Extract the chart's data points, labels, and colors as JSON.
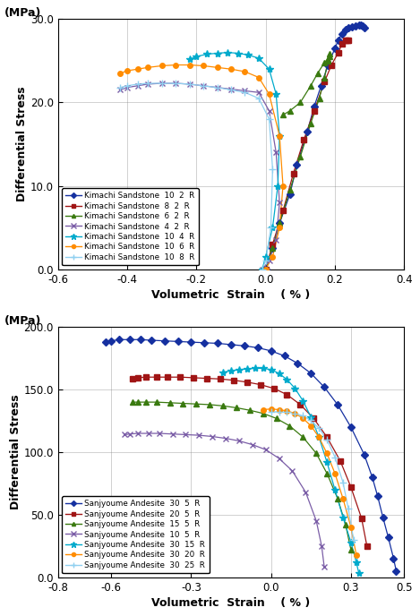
{
  "top_chart": {
    "xlabel": "Volumetric  Strain    ( % )",
    "ylabel": "Differential Stress",
    "ylabel2": "(MPa)",
    "xlim": [
      -0.6,
      0.4
    ],
    "ylim": [
      0.0,
      30.0
    ],
    "xticks": [
      -0.6,
      -0.4,
      -0.2,
      0.0,
      0.2,
      0.4
    ],
    "yticks": [
      0.0,
      10.0,
      20.0,
      30.0
    ],
    "series": [
      {
        "label": "Kimachi Sandstone  10  2  R",
        "color": "#1530A0",
        "marker": "D",
        "markersize": 4,
        "x": [
          0.0,
          0.02,
          0.04,
          0.07,
          0.09,
          0.12,
          0.14,
          0.16,
          0.18,
          0.2,
          0.21,
          0.22,
          0.23,
          0.24,
          0.25,
          0.26,
          0.27,
          0.275,
          0.28,
          0.285
        ],
        "y": [
          0.0,
          2.5,
          5.5,
          9.0,
          12.5,
          16.5,
          19.5,
          22.0,
          24.5,
          26.5,
          27.5,
          28.2,
          28.8,
          29.0,
          29.1,
          29.2,
          29.3,
          29.3,
          29.2,
          29.0
        ]
      },
      {
        "label": "Kimachi Sandstone  8  2  R",
        "color": "#A01515",
        "marker": "s",
        "markersize": 4,
        "x": [
          0.0,
          0.02,
          0.05,
          0.08,
          0.11,
          0.14,
          0.17,
          0.19,
          0.21,
          0.22,
          0.23,
          0.235,
          0.24
        ],
        "y": [
          0.0,
          3.0,
          7.0,
          11.5,
          15.5,
          19.0,
          22.5,
          24.5,
          26.0,
          27.0,
          27.5,
          27.5,
          27.5
        ]
      },
      {
        "label": "Kimachi Sandstone  6  2  R",
        "color": "#3A7A10",
        "marker": "^",
        "markersize": 4,
        "x": [
          0.0,
          0.02,
          0.04,
          0.07,
          0.1,
          0.13,
          0.155,
          0.17,
          0.18,
          0.185,
          0.185,
          0.18,
          0.17,
          0.15,
          0.13,
          0.1,
          0.07,
          0.05
        ],
        "y": [
          0.0,
          2.5,
          5.5,
          9.5,
          13.5,
          17.5,
          20.5,
          23.0,
          25.0,
          25.8,
          25.5,
          25.2,
          24.8,
          23.5,
          22.0,
          20.0,
          19.0,
          18.5
        ]
      },
      {
        "label": "Kimachi Sandstone  4  2  R",
        "color": "#7B5EA7",
        "marker": "x",
        "markersize": 5,
        "x": [
          -0.42,
          -0.4,
          -0.37,
          -0.34,
          -0.3,
          -0.26,
          -0.22,
          -0.18,
          -0.14,
          -0.1,
          -0.06,
          -0.02,
          0.01,
          0.03,
          0.04,
          0.03,
          0.01,
          -0.01
        ],
        "y": [
          21.5,
          21.8,
          22.0,
          22.2,
          22.3,
          22.3,
          22.2,
          22.0,
          21.8,
          21.6,
          21.4,
          21.2,
          19.0,
          14.0,
          8.0,
          3.5,
          1.0,
          0.0
        ]
      },
      {
        "label": "Kimachi Sandstone  10  4  R",
        "color": "#00AACC",
        "marker": "*",
        "markersize": 6,
        "x": [
          -0.22,
          -0.2,
          -0.17,
          -0.14,
          -0.11,
          -0.08,
          -0.05,
          -0.02,
          0.01,
          0.03,
          0.04,
          0.035,
          0.02,
          0.0,
          -0.01
        ],
        "y": [
          25.2,
          25.5,
          25.8,
          25.9,
          26.0,
          25.9,
          25.7,
          25.3,
          24.0,
          21.0,
          16.0,
          10.0,
          5.0,
          1.5,
          0.0
        ]
      },
      {
        "label": "Kimachi Sandstone  10  6  R",
        "color": "#FF8C00",
        "marker": "o",
        "markersize": 4,
        "x": [
          -0.42,
          -0.4,
          -0.37,
          -0.34,
          -0.3,
          -0.26,
          -0.22,
          -0.18,
          -0.14,
          -0.1,
          -0.06,
          -0.02,
          0.01,
          0.04,
          0.05,
          0.04,
          0.02,
          0.0
        ],
        "y": [
          23.5,
          23.8,
          24.0,
          24.2,
          24.4,
          24.5,
          24.5,
          24.4,
          24.2,
          24.0,
          23.7,
          23.0,
          21.0,
          16.0,
          10.0,
          5.0,
          1.5,
          0.0
        ]
      },
      {
        "label": "Kimachi Sandstone  10  8  R",
        "color": "#90D0F0",
        "marker": "+",
        "markersize": 6,
        "x": [
          -0.42,
          -0.4,
          -0.37,
          -0.34,
          -0.3,
          -0.26,
          -0.22,
          -0.18,
          -0.14,
          -0.1,
          -0.06,
          -0.02,
          0.01,
          0.02,
          0.015,
          0.0,
          -0.01
        ],
        "y": [
          21.8,
          22.0,
          22.2,
          22.3,
          22.3,
          22.3,
          22.2,
          22.0,
          21.8,
          21.5,
          21.2,
          20.5,
          18.0,
          12.0,
          5.0,
          1.0,
          0.0
        ]
      }
    ]
  },
  "bottom_chart": {
    "xlabel": "Volumetric  Strain    ( % )",
    "ylabel": "Differential Stress",
    "ylabel2": "(MPa)",
    "xlim": [
      -0.8,
      0.5
    ],
    "ylim": [
      0.0,
      200.0
    ],
    "xticks": [
      -0.8,
      -0.6,
      -0.3,
      0.0,
      0.3,
      0.5
    ],
    "yticks": [
      0.0,
      50.0,
      100.0,
      150.0,
      200.0
    ],
    "series": [
      {
        "label": "Sanjyoume Andesite  30  5  R",
        "color": "#1530A0",
        "marker": "D",
        "markersize": 4,
        "x": [
          -0.62,
          -0.6,
          -0.57,
          -0.53,
          -0.49,
          -0.45,
          -0.4,
          -0.35,
          -0.3,
          -0.25,
          -0.2,
          -0.15,
          -0.1,
          -0.05,
          0.0,
          0.05,
          0.1,
          0.15,
          0.2,
          0.25,
          0.3,
          0.35,
          0.38,
          0.4,
          0.42,
          0.44,
          0.46,
          0.47
        ],
        "y": [
          188.0,
          189.0,
          190.0,
          190.0,
          190.0,
          189.5,
          189.0,
          188.5,
          188.0,
          187.5,
          187.0,
          186.0,
          185.0,
          183.5,
          181.0,
          177.0,
          171.0,
          163.0,
          152.0,
          138.0,
          120.0,
          98.0,
          80.0,
          65.0,
          48.0,
          32.0,
          15.0,
          5.0
        ]
      },
      {
        "label": "Sanjyoume Andesite  20  5  R",
        "color": "#A01515",
        "marker": "s",
        "markersize": 4,
        "x": [
          -0.52,
          -0.5,
          -0.47,
          -0.43,
          -0.39,
          -0.34,
          -0.29,
          -0.24,
          -0.19,
          -0.14,
          -0.09,
          -0.04,
          0.01,
          0.06,
          0.11,
          0.16,
          0.21,
          0.26,
          0.3,
          0.34,
          0.36
        ],
        "y": [
          159.0,
          159.5,
          160.0,
          160.0,
          160.0,
          160.0,
          159.5,
          159.0,
          158.5,
          157.5,
          156.0,
          154.0,
          151.0,
          146.0,
          138.0,
          127.0,
          112.0,
          93.0,
          72.0,
          47.0,
          25.0
        ]
      },
      {
        "label": "Sanjyoume Andesite  15  5  R",
        "color": "#3A7A10",
        "marker": "^",
        "markersize": 4,
        "x": [
          -0.52,
          -0.5,
          -0.47,
          -0.43,
          -0.38,
          -0.33,
          -0.28,
          -0.23,
          -0.18,
          -0.13,
          -0.08,
          -0.03,
          0.02,
          0.07,
          0.12,
          0.17,
          0.21,
          0.25,
          0.28,
          0.3
        ],
        "y": [
          140.0,
          140.0,
          140.0,
          140.0,
          139.5,
          139.0,
          138.5,
          138.0,
          137.0,
          135.5,
          133.5,
          131.0,
          127.0,
          121.0,
          112.0,
          99.0,
          83.0,
          63.0,
          42.0,
          22.0
        ]
      },
      {
        "label": "Sanjyoume Andesite  10  5  R",
        "color": "#7B5EA7",
        "marker": "x",
        "markersize": 5,
        "x": [
          -0.55,
          -0.53,
          -0.5,
          -0.46,
          -0.42,
          -0.37,
          -0.32,
          -0.27,
          -0.22,
          -0.17,
          -0.12,
          -0.07,
          -0.02,
          0.03,
          0.08,
          0.13,
          0.17,
          0.19,
          0.2
        ],
        "y": [
          114.0,
          114.5,
          115.0,
          115.0,
          115.0,
          114.5,
          114.0,
          113.5,
          112.5,
          111.0,
          109.0,
          106.0,
          102.0,
          95.0,
          85.0,
          68.0,
          45.0,
          25.0,
          8.0
        ]
      },
      {
        "label": "Sanjyoume Andesite  30  15  R",
        "color": "#00AACC",
        "marker": "*",
        "markersize": 6,
        "x": [
          -0.18,
          -0.15,
          -0.12,
          -0.09,
          -0.06,
          -0.03,
          0.0,
          0.03,
          0.06,
          0.09,
          0.12,
          0.15,
          0.18,
          0.21,
          0.24,
          0.27,
          0.3,
          0.32,
          0.33
        ],
        "y": [
          164.0,
          165.0,
          166.0,
          166.5,
          167.0,
          167.0,
          166.0,
          163.0,
          158.0,
          151.0,
          141.0,
          128.0,
          112.0,
          92.0,
          70.0,
          48.0,
          28.0,
          12.0,
          3.0
        ]
      },
      {
        "label": "Sanjyoume Andesite  30  20  R",
        "color": "#FF8C00",
        "marker": "o",
        "markersize": 4,
        "x": [
          -0.03,
          0.0,
          0.03,
          0.06,
          0.09,
          0.12,
          0.15,
          0.18,
          0.21,
          0.24,
          0.27,
          0.3,
          0.32
        ],
        "y": [
          134.0,
          134.5,
          134.0,
          133.0,
          131.0,
          127.0,
          121.0,
          112.0,
          99.0,
          83.0,
          63.0,
          40.0,
          18.0
        ]
      },
      {
        "label": "Sanjyoume Andesite  30  25  R",
        "color": "#90D0F0",
        "marker": "+",
        "markersize": 6,
        "x": [
          0.0,
          0.03,
          0.06,
          0.09,
          0.12,
          0.15,
          0.18,
          0.21,
          0.24,
          0.27,
          0.29,
          0.31
        ],
        "y": [
          132.0,
          132.5,
          132.0,
          131.0,
          129.0,
          125.5,
          119.0,
          110.0,
          96.0,
          76.0,
          55.0,
          30.0
        ]
      }
    ]
  }
}
